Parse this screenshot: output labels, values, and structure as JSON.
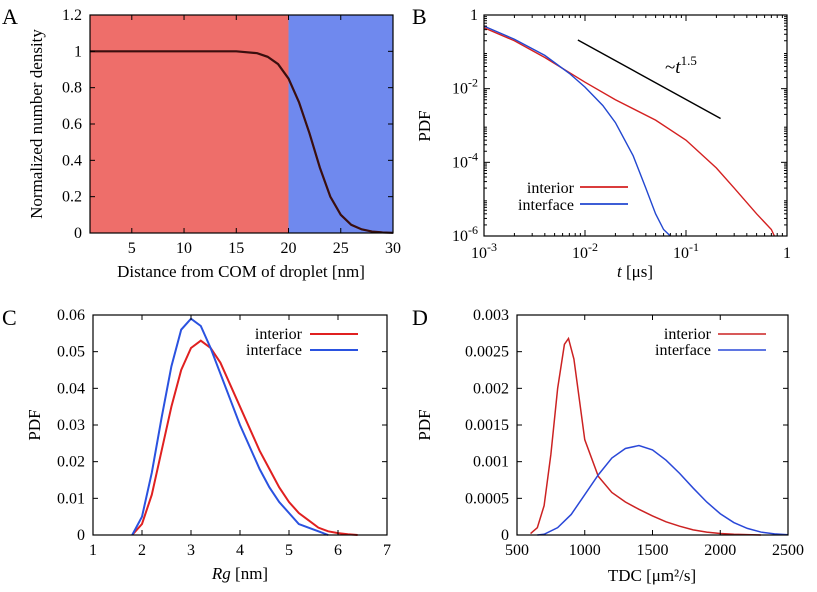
{
  "chart_data": [
    {
      "panel": "A",
      "type": "line",
      "xlabel": "Distance from COM of droplet [nm]",
      "ylabel": "Normalized number density",
      "xlim": [
        1,
        30
      ],
      "ylim": [
        0,
        1.2
      ],
      "xticks": [
        "5",
        "10",
        "15",
        "20",
        "25",
        "30"
      ],
      "yticks": [
        "0",
        "0.2",
        "0.4",
        "0.6",
        "0.8",
        "1",
        "1.2"
      ],
      "regions": [
        {
          "name": "interior",
          "x": [
            1,
            20
          ],
          "color": "#ee6e6a"
        },
        {
          "name": "interface",
          "x": [
            20,
            30
          ],
          "color": "#6f89ee"
        }
      ],
      "series": [
        {
          "name": "density",
          "color": "#3a0e0e",
          "x": [
            1,
            5,
            10,
            15,
            17,
            18,
            19,
            20,
            21,
            22,
            23,
            24,
            25,
            26,
            27,
            28,
            29,
            30
          ],
          "y": [
            1.0,
            1.0,
            1.0,
            1.0,
            0.99,
            0.97,
            0.93,
            0.85,
            0.72,
            0.55,
            0.36,
            0.2,
            0.1,
            0.045,
            0.02,
            0.008,
            0.003,
            0.001
          ]
        }
      ]
    },
    {
      "panel": "B",
      "type": "line",
      "xscale": "log",
      "yscale": "log",
      "xlabel_italic": "t",
      "xlabel_unit": " [μs]",
      "ylabel": "PDF",
      "xlim": [
        0.001,
        1
      ],
      "ylim": [
        1e-06,
        1
      ],
      "xticks": [
        {
          "value": 0.001,
          "base": "10",
          "exp": "-3"
        },
        {
          "value": 0.01,
          "base": "10",
          "exp": "-2"
        },
        {
          "value": 0.1,
          "base": "10",
          "exp": "-1"
        },
        {
          "value": 1,
          "label": "1"
        }
      ],
      "yticks": [
        {
          "value": 1,
          "label": "1"
        },
        {
          "value": 0.01,
          "base": "10",
          "exp": "-2"
        },
        {
          "value": 0.0001,
          "base": "10",
          "exp": "-4"
        },
        {
          "value": 1e-06,
          "base": "10",
          "exp": "-6"
        }
      ],
      "annotation": {
        "prefix": "~",
        "var": "t",
        "exp": "1.5",
        "guide_x": [
          0.0085,
          0.22
        ],
        "guide_y": [
          0.21,
          0.00155
        ]
      },
      "series": [
        {
          "name": "interior",
          "color": "#d42020",
          "x": [
            0.001,
            0.002,
            0.004,
            0.01,
            0.02,
            0.05,
            0.1,
            0.2,
            0.3,
            0.5,
            0.7,
            0.75
          ],
          "y": [
            0.45,
            0.2,
            0.07,
            0.015,
            0.005,
            0.0014,
            0.0004,
            7e-05,
            2e-05,
            4e-06,
            1.5e-06,
            1e-06
          ]
        },
        {
          "name": "interface",
          "color": "#2247d0",
          "x": [
            0.001,
            0.002,
            0.004,
            0.007,
            0.01,
            0.015,
            0.02,
            0.03,
            0.04,
            0.05,
            0.06,
            0.07
          ],
          "y": [
            0.5,
            0.22,
            0.08,
            0.026,
            0.011,
            0.0035,
            0.0012,
            0.00015,
            2e-05,
            4e-06,
            1.5e-06,
            1e-06
          ]
        }
      ]
    },
    {
      "panel": "C",
      "type": "line",
      "xlabel_italic": "Rg",
      "xlabel_unit": " [nm]",
      "ylabel": "PDF",
      "xlim": [
        1,
        7
      ],
      "ylim": [
        0,
        0.06
      ],
      "xticks": [
        "1",
        "2",
        "3",
        "4",
        "5",
        "6",
        "7"
      ],
      "yticks": [
        "0",
        "0.01",
        "0.02",
        "0.03",
        "0.04",
        "0.05",
        "0.06"
      ],
      "series": [
        {
          "name": "interior",
          "color": "#e02020",
          "x": [
            1.8,
            2.0,
            2.2,
            2.4,
            2.6,
            2.8,
            3.0,
            3.2,
            3.4,
            3.6,
            3.8,
            4.0,
            4.2,
            4.4,
            4.6,
            4.8,
            5.0,
            5.2,
            5.4,
            5.6,
            5.8,
            6.0,
            6.2,
            6.4
          ],
          "y": [
            0.0,
            0.003,
            0.011,
            0.023,
            0.035,
            0.045,
            0.051,
            0.053,
            0.051,
            0.047,
            0.041,
            0.035,
            0.029,
            0.023,
            0.018,
            0.013,
            0.009,
            0.006,
            0.004,
            0.002,
            0.001,
            0.0005,
            0.0002,
            0.0
          ]
        },
        {
          "name": "interface",
          "color": "#2a52e0",
          "x": [
            1.8,
            2.0,
            2.2,
            2.4,
            2.6,
            2.8,
            3.0,
            3.2,
            3.4,
            3.6,
            3.8,
            4.0,
            4.2,
            4.4,
            4.6,
            4.8,
            5.0,
            5.2,
            5.4,
            5.6,
            5.8
          ],
          "y": [
            0.0,
            0.005,
            0.017,
            0.032,
            0.046,
            0.056,
            0.059,
            0.057,
            0.051,
            0.044,
            0.037,
            0.03,
            0.024,
            0.018,
            0.013,
            0.009,
            0.006,
            0.003,
            0.002,
            0.001,
            0.0
          ]
        }
      ]
    },
    {
      "panel": "D",
      "type": "line",
      "xlabel": "TDC [μm²/s]",
      "ylabel": "PDF",
      "xlim": [
        500,
        2500
      ],
      "ylim": [
        0,
        0.003
      ],
      "xticks": [
        "500",
        "1000",
        "1500",
        "2000",
        "2500"
      ],
      "yticks": [
        "0",
        "0.0005",
        "0.001",
        "0.0015",
        "0.002",
        "0.0025",
        "0.003"
      ],
      "series": [
        {
          "name": "interior",
          "color": "#cc2222",
          "x": [
            600,
            650,
            700,
            750,
            800,
            850,
            880,
            920,
            960,
            1000,
            1100,
            1200,
            1300,
            1400,
            1500,
            1600,
            1700,
            1800,
            1900,
            2000,
            2100,
            2200,
            2300
          ],
          "y": [
            2e-05,
            0.0001,
            0.0004,
            0.0011,
            0.002,
            0.0026,
            0.00268,
            0.0024,
            0.00185,
            0.0013,
            0.0008,
            0.00058,
            0.00045,
            0.00035,
            0.00026,
            0.00018,
            0.00012,
            7e-05,
            4e-05,
            2e-05,
            1e-05,
            5e-06,
            0.0
          ]
        },
        {
          "name": "interface",
          "color": "#2a48d8",
          "x": [
            650,
            700,
            800,
            900,
            1000,
            1100,
            1200,
            1300,
            1400,
            1500,
            1600,
            1700,
            1800,
            1900,
            2000,
            2100,
            2200,
            2300,
            2400,
            2500
          ],
          "y": [
            0.0,
            1e-05,
            0.0001,
            0.00028,
            0.00055,
            0.00082,
            0.00105,
            0.00118,
            0.00122,
            0.00116,
            0.00102,
            0.00084,
            0.00064,
            0.00045,
            0.00029,
            0.00017,
            9e-05,
            4e-05,
            1.5e-05,
            4e-06
          ]
        }
      ]
    }
  ]
}
